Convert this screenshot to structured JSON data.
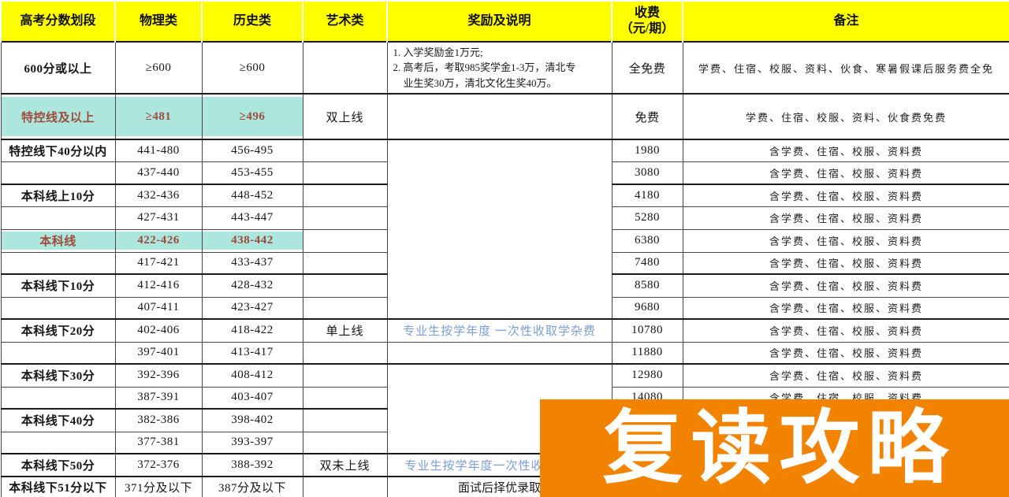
{
  "banner": {
    "text": "复读攻略",
    "background": "#F28300",
    "text_color": "#FFFFFF"
  },
  "colors": {
    "header_bg": "#FFFF00",
    "highlight_bg": "#ACE6DC",
    "highlight_text": "#9E4A3C",
    "annotation_blue": "#7D9DD5"
  },
  "table": {
    "headers": [
      "高考分数划段",
      "物理类",
      "历史类",
      "艺术类",
      "奖励及说明",
      "收费\n（元/期）",
      "备注"
    ],
    "rows": [
      {
        "segment": "600分或以上",
        "physics": "≥600",
        "history": "≥600",
        "art": "",
        "reward": "1. 入学奖励金1万元;\n2. 高考后，考取985奖学金1-3万，清北专\n　业生奖30万，清北文化生奖40万。",
        "fee": "全免费",
        "note": "学费、住宿、校服、资料、伙食、寒暑假课后服务费全免"
      },
      {
        "segment": "特控线及以上",
        "physics": "≥481",
        "history": "≥496",
        "art": "双上线",
        "reward": "",
        "fee": "免费",
        "note": "学费、住宿、校服、资料、伙食费免费"
      },
      {
        "segment": "特控线下40分以内",
        "physics": "441-480",
        "history": "456-495",
        "art": "",
        "reward": "",
        "fee": "1980",
        "note": "含学费、住宿、校服、资料费"
      },
      {
        "segment": "",
        "physics": "437-440",
        "history": "453-455",
        "art": "",
        "reward": "",
        "fee": "3080",
        "note": "含学费、住宿、校服、资料费"
      },
      {
        "segment": "本科线上10分",
        "physics": "432-436",
        "history": "448-452",
        "art": "",
        "reward": "",
        "fee": "4180",
        "note": "含学费、住宿、校服、资料费"
      },
      {
        "segment": "",
        "physics": "427-431",
        "history": "443-447",
        "art": "",
        "reward": "",
        "fee": "5280",
        "note": "含学费、住宿、校服、资料费"
      },
      {
        "segment": "本科线",
        "physics": "422-426",
        "history": "438-442",
        "art": "",
        "reward": "",
        "fee": "6380",
        "note": "含学费、住宿、校服、资料费"
      },
      {
        "segment": "",
        "physics": "417-421",
        "history": "433-437",
        "art": "",
        "reward": "",
        "fee": "7480",
        "note": "含学费、住宿、校服、资料费"
      },
      {
        "segment": "本科线下10分",
        "physics": "412-416",
        "history": "428-432",
        "art": "",
        "reward": "",
        "fee": "8580",
        "note": "含学费、住宿、校服、资料费"
      },
      {
        "segment": "",
        "physics": "407-411",
        "history": "423-427",
        "art": "",
        "reward": "",
        "fee": "9680",
        "note": "含学费、住宿、校服、资料费"
      },
      {
        "segment": "本科线下20分",
        "physics": "402-406",
        "history": "418-422",
        "art": "单上线",
        "reward": "专业生按学年度 一次性收取学杂费",
        "fee": "10780",
        "note": "含学费、住宿、校服、资料费"
      },
      {
        "segment": "",
        "physics": "397-401",
        "history": "413-417",
        "art": "",
        "reward": "",
        "fee": "11880",
        "note": "含学费、住宿、校服、资料费"
      },
      {
        "segment": "本科线下30分",
        "physics": "392-396",
        "history": "408-412",
        "art": "",
        "reward": "",
        "fee": "12980",
        "note": "含学费、住宿、校服、资料费"
      },
      {
        "segment": "",
        "physics": "387-391",
        "history": "403-407",
        "art": "",
        "reward": "",
        "fee": "14080",
        "note": "含学费、住宿、校服、资料费"
      },
      {
        "segment": "本科线下40分",
        "physics": "382-386",
        "history": "398-402",
        "art": "",
        "reward": "",
        "fee": "",
        "note": ""
      },
      {
        "segment": "",
        "physics": "377-381",
        "history": "393-397",
        "art": "",
        "reward": "",
        "fee": "",
        "note": ""
      },
      {
        "segment": "本科线下50分",
        "physics": "372-376",
        "history": "388-392",
        "art": "双未上线",
        "reward": "专业生按学年度一次性收取学杂费",
        "fee": "",
        "note": ""
      },
      {
        "segment": "本科线下51分以下",
        "physics": "371分及以下",
        "history": "387分及以下",
        "art": "",
        "reward": "面试后择优录取",
        "fee": "",
        "note": ""
      }
    ]
  }
}
